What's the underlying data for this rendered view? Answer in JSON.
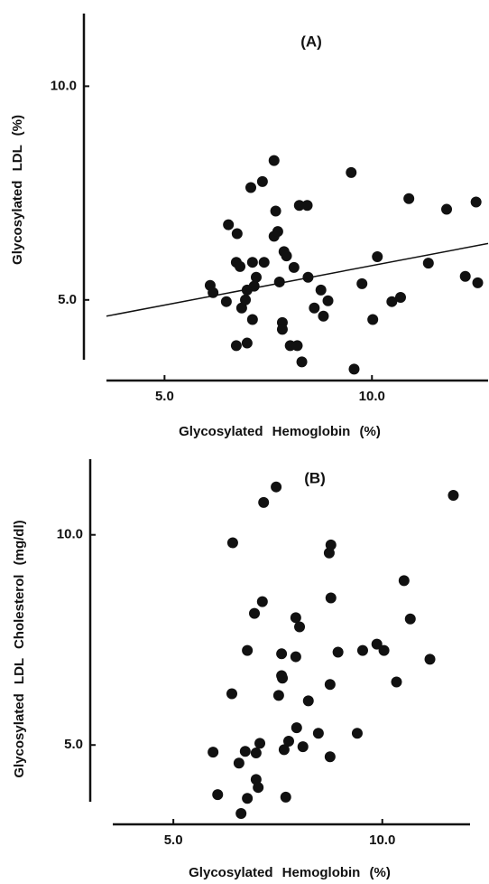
{
  "chart_data": [
    {
      "type": "scatter",
      "title": "(A)",
      "x_label": "Glycosylated Hemoglobin (%)",
      "y_label": "Glycosylated LDL (%)",
      "color": "#111111",
      "xlim": [
        3.6,
        12.8
      ],
      "ylim": [
        3.6,
        11.7
      ],
      "xticks": [
        {
          "value": 5,
          "label": "5.0"
        },
        {
          "value": 10,
          "label": "10.0"
        }
      ],
      "yticks": [
        {
          "value": 5,
          "label": "5.0"
        },
        {
          "value": 10,
          "label": "10.0"
        }
      ],
      "x": [
        6.1,
        6.17,
        6.49,
        6.54,
        6.75,
        6.73,
        6.82,
        6.86,
        6.95,
        6.99,
        6.73,
        6.99,
        7.08,
        7.12,
        7.16,
        7.21,
        7.12,
        7.36,
        7.4,
        7.64,
        7.68,
        7.73,
        7.64,
        7.77,
        7.84,
        7.84,
        7.88,
        7.94,
        8.12,
        8.03,
        8.2,
        8.25,
        8.31,
        8.44,
        8.46,
        8.61,
        8.77,
        8.83,
        8.94,
        9.5,
        9.57,
        9.76,
        10.02,
        10.13,
        10.48,
        10.69,
        10.89,
        11.36,
        11.8,
        12.25,
        12.51,
        12.55
      ],
      "values": [
        5.34,
        5.17,
        4.96,
        6.76,
        6.55,
        5.88,
        5.78,
        4.81,
        5.0,
        5.23,
        3.93,
        3.99,
        7.63,
        4.54,
        5.32,
        5.53,
        5.88,
        7.77,
        5.88,
        6.49,
        7.08,
        6.6,
        8.26,
        5.42,
        4.47,
        4.31,
        6.13,
        6.03,
        5.76,
        3.93,
        3.93,
        7.21,
        3.55,
        7.21,
        5.53,
        4.81,
        5.23,
        4.62,
        4.98,
        7.98,
        3.38,
        5.38,
        4.54,
        6.01,
        4.96,
        5.06,
        7.37,
        5.86,
        7.12,
        5.55,
        7.29,
        5.4
      ],
      "trend": {
        "x": [
          3.6,
          12.8
        ],
        "y": [
          4.62,
          6.32
        ]
      }
    },
    {
      "type": "scatter",
      "title": "(B)",
      "x_label": "Glycosylated Hemoglobin (%)",
      "y_label": "Glycosylated LDL Cholesterol (mg/dl)",
      "color": "#111111",
      "xlim": [
        3.55,
        12.1
      ],
      "ylim": [
        3.65,
        11.8
      ],
      "xticks": [
        {
          "value": 5,
          "label": "5.0"
        },
        {
          "value": 10,
          "label": "10.0"
        }
      ],
      "yticks": [
        {
          "value": 5,
          "label": "5.0"
        },
        {
          "value": 10,
          "label": "10.0"
        }
      ],
      "x": [
        5.95,
        6.06,
        6.4,
        6.42,
        6.57,
        6.62,
        6.72,
        6.77,
        6.77,
        6.94,
        6.98,
        6.98,
        7.03,
        7.07,
        7.13,
        7.16,
        7.46,
        7.52,
        7.59,
        7.59,
        7.61,
        7.65,
        7.69,
        7.76,
        7.93,
        7.93,
        7.95,
        8.02,
        8.1,
        8.23,
        8.47,
        8.75,
        8.73,
        8.75,
        8.77,
        8.77,
        8.94,
        9.4,
        9.53,
        9.87,
        10.04,
        10.34,
        10.52,
        10.67,
        11.14,
        11.7
      ],
      "values": [
        4.83,
        3.82,
        6.22,
        9.81,
        4.57,
        3.37,
        4.85,
        3.73,
        7.25,
        8.13,
        4.18,
        4.81,
        3.99,
        5.04,
        8.41,
        10.77,
        11.14,
        6.18,
        6.65,
        7.17,
        6.59,
        4.89,
        3.76,
        5.09,
        7.1,
        8.03,
        5.41,
        7.81,
        4.96,
        6.05,
        5.28,
        4.72,
        9.57,
        6.44,
        9.76,
        8.5,
        7.21,
        5.28,
        7.25,
        7.4,
        7.25,
        6.5,
        8.91,
        8.0,
        7.04,
        10.94
      ]
    }
  ]
}
